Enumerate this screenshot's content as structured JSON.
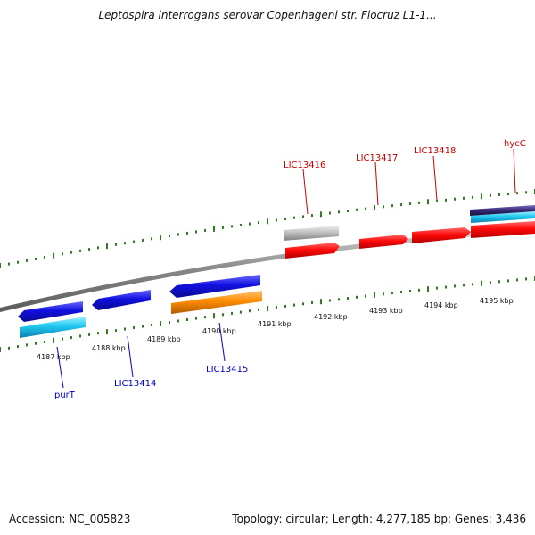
{
  "title": "Leptospira interrogans serovar Copenhageni str. Fiocruz L1-1...",
  "footer": {
    "accession": "Accession: NC_005823",
    "stats": "Topology: circular; Length: 4,277,185 bp; Genes: 3,436"
  },
  "kbp_labels": [
    "4187 kbp",
    "4188 kbp",
    "4189 kbp",
    "4190 kbp",
    "4191 kbp",
    "4192 kbp",
    "4193 kbp",
    "4194 kbp",
    "4195 kbp"
  ],
  "gene_labels": {
    "top": [
      "LIC13416",
      "LIC13417",
      "LIC13418",
      "hycC"
    ],
    "bottom": [
      "purT",
      "LIC13414",
      "LIC13415"
    ]
  },
  "colors": {
    "forward_gene": "#e8000d",
    "reverse_gene": "#1a1ae6",
    "top_label": "#cc0000",
    "bottom_label": "#0000cc",
    "cds_cyan": "#22c8f0",
    "cds_orange": "#ff8c00",
    "cds_gray": "#c0c0c0",
    "cds_purple": "#3a2a7a",
    "tick_green": "#2e7d1e"
  }
}
